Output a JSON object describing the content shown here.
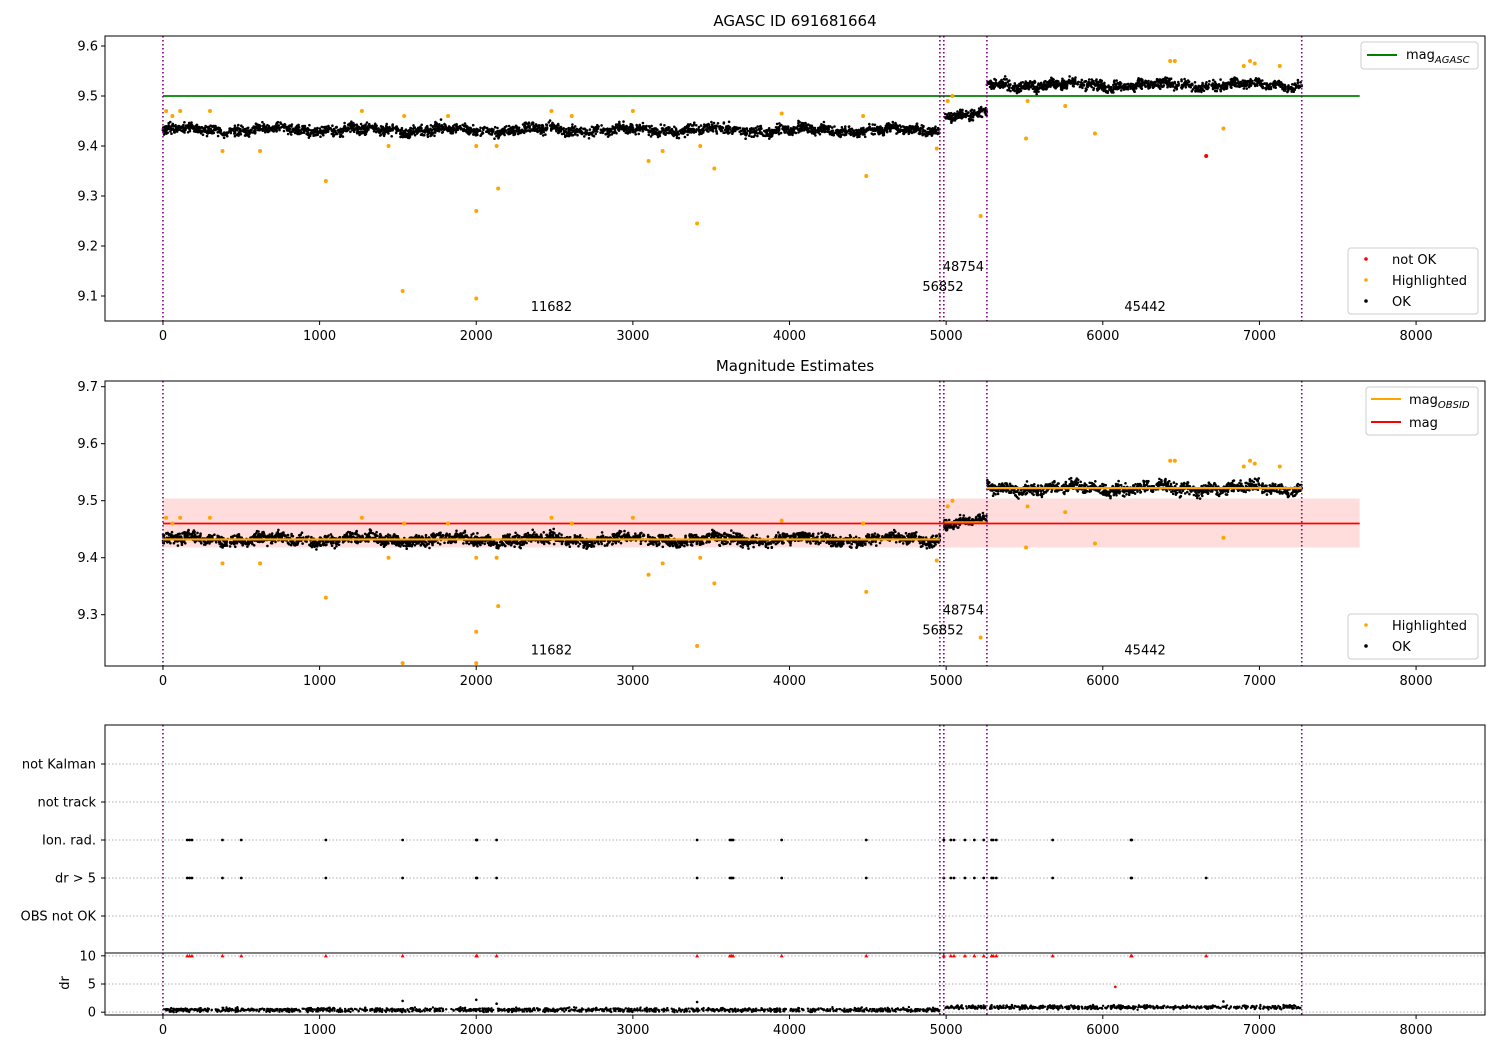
{
  "chart_data": [
    {
      "type": "scatter",
      "title": "AGASC ID 691681664",
      "xlim": [
        -370,
        8440
      ],
      "ylim": [
        9.05,
        9.62
      ],
      "xticks": [
        0,
        1000,
        2000,
        3000,
        4000,
        5000,
        6000,
        7000,
        8000
      ],
      "yticks": [
        "9.1",
        "9.2",
        "9.3",
        "9.4",
        "9.5",
        "9.6"
      ],
      "obs_boundaries": [
        0,
        4960,
        4985,
        5260,
        7270
      ],
      "obs_labels": [
        {
          "text": "11682",
          "x": 2480,
          "y": 9.07
        },
        {
          "text": "56852",
          "x": 4980,
          "y": 9.11
        },
        {
          "text": "48754",
          "x": 5110,
          "y": 9.15
        },
        {
          "text": "45442",
          "x": 6270,
          "y": 9.07
        }
      ],
      "reference_line": {
        "name": "mag_AGASC",
        "value": 9.5,
        "x": [
          0,
          7640
        ],
        "color": "#008000"
      },
      "segments": [
        {
          "x": [
            0,
            4960
          ],
          "mean": 9.432,
          "spread": 0.013
        },
        {
          "x": [
            4985,
            5260
          ],
          "mean": 9.462,
          "spread": 0.012
        },
        {
          "x": [
            5260,
            7270
          ],
          "mean": 9.522,
          "spread": 0.013
        }
      ],
      "highlighted_points": [
        [
          20,
          9.47
        ],
        [
          60,
          9.46
        ],
        [
          110,
          9.47
        ],
        [
          300,
          9.47
        ],
        [
          380,
          9.39
        ],
        [
          620,
          9.39
        ],
        [
          1040,
          9.33
        ],
        [
          1270,
          9.47
        ],
        [
          1440,
          9.4
        ],
        [
          1530,
          9.11
        ],
        [
          1540,
          9.46
        ],
        [
          1820,
          9.46
        ],
        [
          2000,
          9.27
        ],
        [
          2000,
          9.095
        ],
        [
          2000,
          9.4
        ],
        [
          2130,
          9.4
        ],
        [
          2140,
          9.315
        ],
        [
          2480,
          9.47
        ],
        [
          2610,
          9.46
        ],
        [
          3000,
          9.47
        ],
        [
          3100,
          9.37
        ],
        [
          3190,
          9.39
        ],
        [
          3410,
          9.245
        ],
        [
          3430,
          9.4
        ],
        [
          3520,
          9.355
        ],
        [
          3950,
          9.465
        ],
        [
          4470,
          9.46
        ],
        [
          4490,
          9.34
        ],
        [
          4940,
          9.395
        ],
        [
          5010,
          9.49
        ],
        [
          5040,
          9.5
        ],
        [
          5220,
          9.26
        ],
        [
          5510,
          9.415
        ],
        [
          5520,
          9.49
        ],
        [
          5760,
          9.48
        ],
        [
          5950,
          9.425
        ],
        [
          6430,
          9.57
        ],
        [
          6460,
          9.57
        ],
        [
          6770,
          9.435
        ],
        [
          6900,
          9.56
        ],
        [
          6940,
          9.57
        ],
        [
          6970,
          9.565
        ],
        [
          7130,
          9.56
        ]
      ],
      "not_ok_points": [
        [
          6660,
          9.38
        ]
      ],
      "legend": {
        "lines": [
          {
            "label": "mag",
            "sub": "AGASC",
            "color": "#008000"
          }
        ],
        "points": [
          {
            "label": "not OK",
            "color": "#ff0000"
          },
          {
            "label": "Highlighted",
            "color": "#ffa500"
          },
          {
            "label": "OK",
            "color": "#000000"
          }
        ]
      }
    },
    {
      "type": "scatter",
      "title": "Magnitude Estimates",
      "xlim": [
        -370,
        8440
      ],
      "ylim": [
        9.21,
        9.71
      ],
      "xticks": [
        0,
        1000,
        2000,
        3000,
        4000,
        5000,
        6000,
        7000,
        8000
      ],
      "yticks": [
        "9.3",
        "9.4",
        "9.5",
        "9.6",
        "9.7"
      ],
      "obs_boundaries": [
        0,
        4960,
        4985,
        5260,
        7270
      ],
      "obs_labels": [
        {
          "text": "11682",
          "x": 2480,
          "y": 9.23
        },
        {
          "text": "56852",
          "x": 4980,
          "y": 9.265
        },
        {
          "text": "48754",
          "x": 5110,
          "y": 9.3
        },
        {
          "text": "45442",
          "x": 6270,
          "y": 9.23
        }
      ],
      "mag_band": {
        "x": [
          0,
          7640
        ],
        "low": 9.418,
        "high": 9.504,
        "color": "#ffdddd"
      },
      "mag_line": {
        "name": "mag",
        "value": 9.46,
        "x": [
          0,
          7640
        ],
        "color": "#ff0000"
      },
      "obsid_mags": [
        {
          "x": [
            0,
            4960
          ],
          "value": 9.432
        },
        {
          "x": [
            4985,
            5260
          ],
          "value": 9.462
        },
        {
          "x": [
            5260,
            7270
          ],
          "value": 9.522
        }
      ],
      "segments": [
        {
          "x": [
            0,
            4960
          ],
          "mean": 9.432,
          "spread": 0.013
        },
        {
          "x": [
            4985,
            5260
          ],
          "mean": 9.462,
          "spread": 0.012
        },
        {
          "x": [
            5260,
            7270
          ],
          "mean": 9.522,
          "spread": 0.013
        }
      ],
      "highlighted_points": [
        [
          20,
          9.47
        ],
        [
          60,
          9.46
        ],
        [
          110,
          9.47
        ],
        [
          300,
          9.47
        ],
        [
          380,
          9.39
        ],
        [
          620,
          9.39
        ],
        [
          1040,
          9.33
        ],
        [
          1270,
          9.47
        ],
        [
          1440,
          9.4
        ],
        [
          1530,
          9.215
        ],
        [
          1540,
          9.46
        ],
        [
          1820,
          9.46
        ],
        [
          2000,
          9.27
        ],
        [
          2000,
          9.215
        ],
        [
          2000,
          9.4
        ],
        [
          2130,
          9.4
        ],
        [
          2140,
          9.315
        ],
        [
          2480,
          9.47
        ],
        [
          2610,
          9.46
        ],
        [
          3000,
          9.47
        ],
        [
          3100,
          9.37
        ],
        [
          3190,
          9.39
        ],
        [
          3410,
          9.245
        ],
        [
          3430,
          9.4
        ],
        [
          3520,
          9.355
        ],
        [
          3950,
          9.465
        ],
        [
          4470,
          9.46
        ],
        [
          4490,
          9.34
        ],
        [
          4940,
          9.395
        ],
        [
          5010,
          9.49
        ],
        [
          5040,
          9.5
        ],
        [
          5220,
          9.26
        ],
        [
          5510,
          9.418
        ],
        [
          5520,
          9.49
        ],
        [
          5760,
          9.48
        ],
        [
          5950,
          9.425
        ],
        [
          6430,
          9.57
        ],
        [
          6460,
          9.57
        ],
        [
          6770,
          9.435
        ],
        [
          6900,
          9.56
        ],
        [
          6940,
          9.57
        ],
        [
          6970,
          9.565
        ],
        [
          7130,
          9.56
        ]
      ],
      "legend": {
        "lines": [
          {
            "label": "mag",
            "sub": "OBSID",
            "color": "#ffa500"
          },
          {
            "label": "mag",
            "sub": "",
            "color": "#ff0000"
          }
        ],
        "points": [
          {
            "label": "Highlighted",
            "color": "#ffa500"
          },
          {
            "label": "OK",
            "color": "#000000"
          }
        ]
      }
    },
    {
      "type": "scatter",
      "title": "",
      "xlim": [
        -370,
        8440
      ],
      "xticks": [
        0,
        1000,
        2000,
        3000,
        4000,
        5000,
        6000,
        7000,
        8000
      ],
      "obs_boundaries": [
        0,
        4960,
        4985,
        5260,
        7270
      ],
      "flag_rows": [
        "not Kalman",
        "not track",
        "Ion. rad.",
        "dr > 5",
        "OBS not OK"
      ],
      "flags": {
        "Ion. rad.": [
          155,
          170,
          185,
          380,
          500,
          1040,
          1530,
          2000,
          2005,
          2130,
          3410,
          3620,
          3630,
          3640,
          3950,
          4490,
          4985,
          5030,
          5050,
          5120,
          5180,
          5240,
          5290,
          5300,
          5320,
          5680,
          6180,
          6185
        ],
        "dr > 5": [
          155,
          170,
          185,
          380,
          500,
          1040,
          1530,
          2000,
          2005,
          2130,
          3410,
          3620,
          3630,
          3640,
          3950,
          4490,
          4985,
          5030,
          5050,
          5120,
          5180,
          5240,
          5290,
          5300,
          5320,
          5680,
          6180,
          6185,
          6660
        ]
      },
      "dr_axis": {
        "label": "dr",
        "ylim": [
          -0.5,
          10.5
        ],
        "yticks": [
          "0",
          "5",
          "10"
        ]
      },
      "dr_high_points": [
        155,
        170,
        185,
        380,
        500,
        1040,
        1530,
        2000,
        2005,
        2130,
        3410,
        3620,
        3630,
        3640,
        3950,
        4490,
        4985,
        5030,
        5050,
        5120,
        5180,
        5240,
        5290,
        5300,
        5320,
        5680,
        6180,
        6185,
        6660
      ],
      "dr_outliers": [
        [
          1530,
          2.0
        ],
        [
          2000,
          2.2
        ],
        [
          2130,
          1.5
        ],
        [
          3410,
          1.8
        ],
        [
          6080,
          4.5
        ],
        [
          6770,
          1.9
        ]
      ]
    }
  ]
}
